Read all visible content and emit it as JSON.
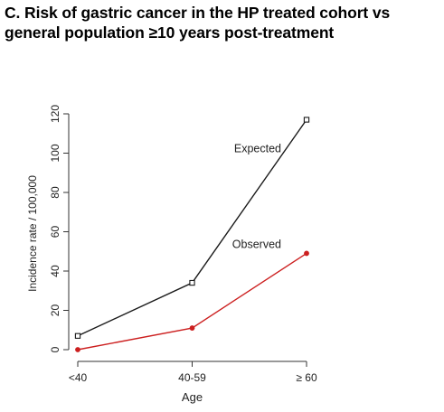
{
  "title_lines": [
    "C. Risk of gastric cancer in the HP treated cohort vs",
    "general population ≥10 years post-treatment"
  ],
  "chart_data": {
    "type": "line",
    "categories": [
      "<40",
      "40-59",
      "≥ 60"
    ],
    "xlabel": "Age",
    "ylabel": "Incidence rate / 100,000",
    "ylim": [
      0,
      120
    ],
    "yticks": [
      0,
      20,
      40,
      60,
      80,
      100,
      120
    ],
    "grid": false,
    "series": [
      {
        "name": "Expected",
        "values": [
          7,
          34,
          117
        ],
        "color": "#1a1a1a",
        "marker": "open-square"
      },
      {
        "name": "Observed",
        "values": [
          0,
          11,
          49
        ],
        "color": "#cc1f1f",
        "marker": "filled-circle"
      }
    ]
  }
}
